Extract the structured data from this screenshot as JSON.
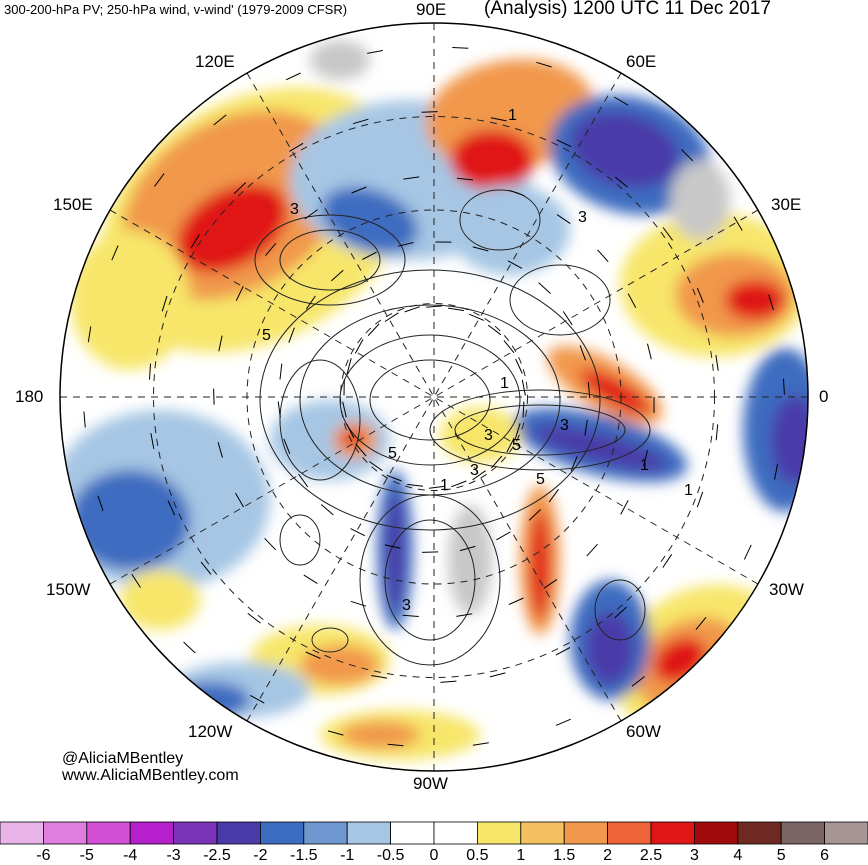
{
  "header": {
    "left_title": "300-200-hPa PV; 250-hPa wind, v-wind' (1979-2009 CFSR)",
    "right_title": "(Analysis) 1200 UTC 11 Dec 2017"
  },
  "credits": {
    "handle": "@AliciaMBentley",
    "website": "www.AliciaMBentley.com"
  },
  "longitude_labels": {
    "lon_90e": "90E",
    "lon_60e": "60E",
    "lon_120e": "120E",
    "lon_30e": "30E",
    "lon_150e": "150E",
    "lon_0": "0",
    "lon_180": "180",
    "lon_30w": "30W",
    "lon_150w": "150W",
    "lon_60w": "60W",
    "lon_120w": "120W",
    "lon_90w": "90W"
  },
  "map_labels": [
    "1",
    "3",
    "3",
    "1",
    "5",
    "1",
    "3",
    "5",
    "1",
    "3",
    "5",
    "3",
    "5",
    "1",
    "3"
  ],
  "colorbar": {
    "colors": [
      "#e8b4e8",
      "#e07ee0",
      "#d24fd6",
      "#b51fcc",
      "#7a33b8",
      "#4a3aa8",
      "#3c6cc0",
      "#6e96cf",
      "#a6c6e4",
      "#ffffff",
      "#ffffff",
      "#f7e66a",
      "#f4c060",
      "#f1984c",
      "#ee6438",
      "#e01616",
      "#a00a0a",
      "#6e2a22",
      "#7a6464",
      "#a89696"
    ],
    "labels": [
      "-6",
      "-5",
      "-4",
      "-3",
      "-2.5",
      "-2",
      "-1.5",
      "-1",
      "-0.5",
      "0",
      "0.5",
      "1",
      "1.5",
      "2",
      "2.5",
      "3",
      "4",
      "5",
      "6"
    ]
  },
  "map_colors": {
    "neg_strong": "#4a3aa8",
    "neg_mid": "#3c6cc0",
    "neg_light": "#a6c6e4",
    "pos_light": "#f7e66a",
    "pos_mid": "#f1984c",
    "pos_strong": "#e01616",
    "land_gray": "#c8c8c8"
  }
}
